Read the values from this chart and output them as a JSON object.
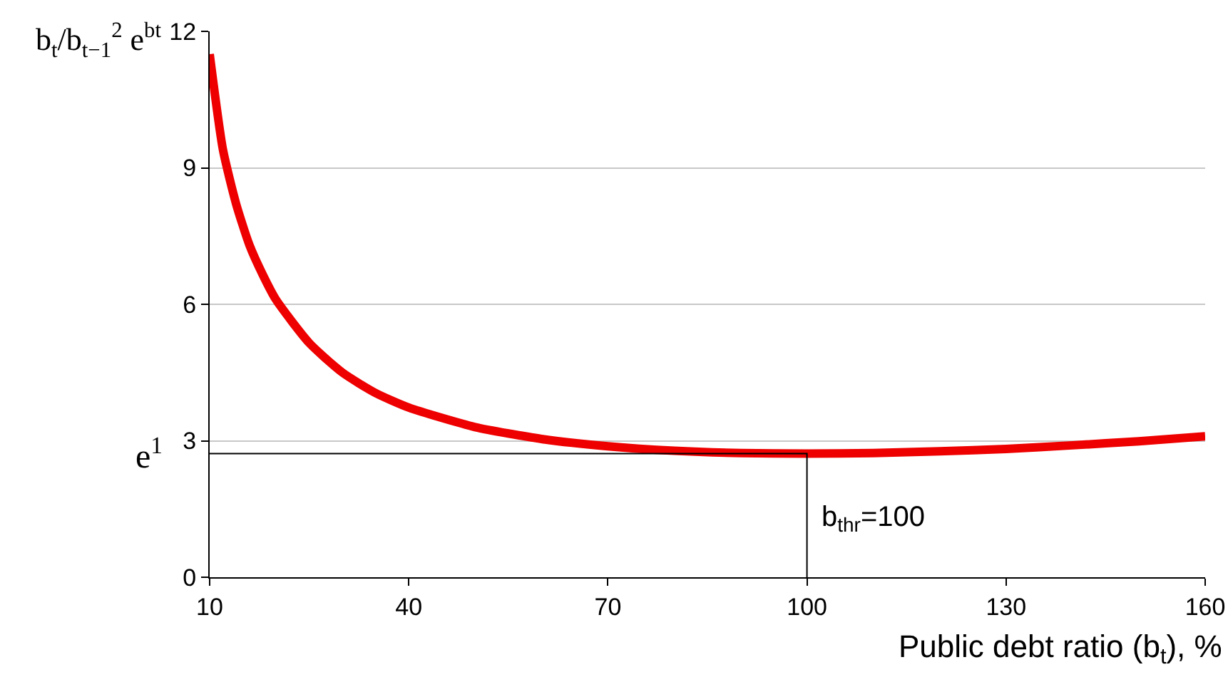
{
  "chart_data": {
    "type": "line",
    "ylabel": "b$_{t}$/b$_{t−1}$$^{2}$ e$^{bt}$",
    "xlabel": "Public debt ratio (b$_{t}$), %",
    "xlim": [
      10,
      160
    ],
    "xticks": [
      10,
      40,
      70,
      100,
      130,
      160
    ],
    "ylim": [
      0,
      12
    ],
    "yticks": [
      0,
      3,
      6,
      9,
      12
    ],
    "grid": "y",
    "marker": "none",
    "series": [
      {
        "color": "#ee0000",
        "x": [
          10,
          12,
          14,
          16,
          18,
          20,
          25,
          30,
          35,
          40,
          50,
          60,
          70,
          80,
          90,
          100,
          110,
          120,
          130,
          140,
          150,
          160
        ],
        "values": [
          11.5,
          9.4,
          8.2,
          7.3,
          6.65,
          6.1,
          5.15,
          4.5,
          4.05,
          3.73,
          3.3,
          3.04,
          2.88,
          2.78,
          2.73,
          2.72,
          2.73,
          2.77,
          2.82,
          2.9,
          2.99,
          3.1
        ]
      },
      {
        "color": "#000000",
        "x": [
          10,
          100,
          100
        ],
        "values": [
          2.72,
          2.72,
          0
        ]
      }
    ],
    "annotations": [
      "e$^{1}$",
      {
        "text": "b$_{thr}$=100",
        "x": 100,
        "y": 1.3
      }
    ]
  }
}
